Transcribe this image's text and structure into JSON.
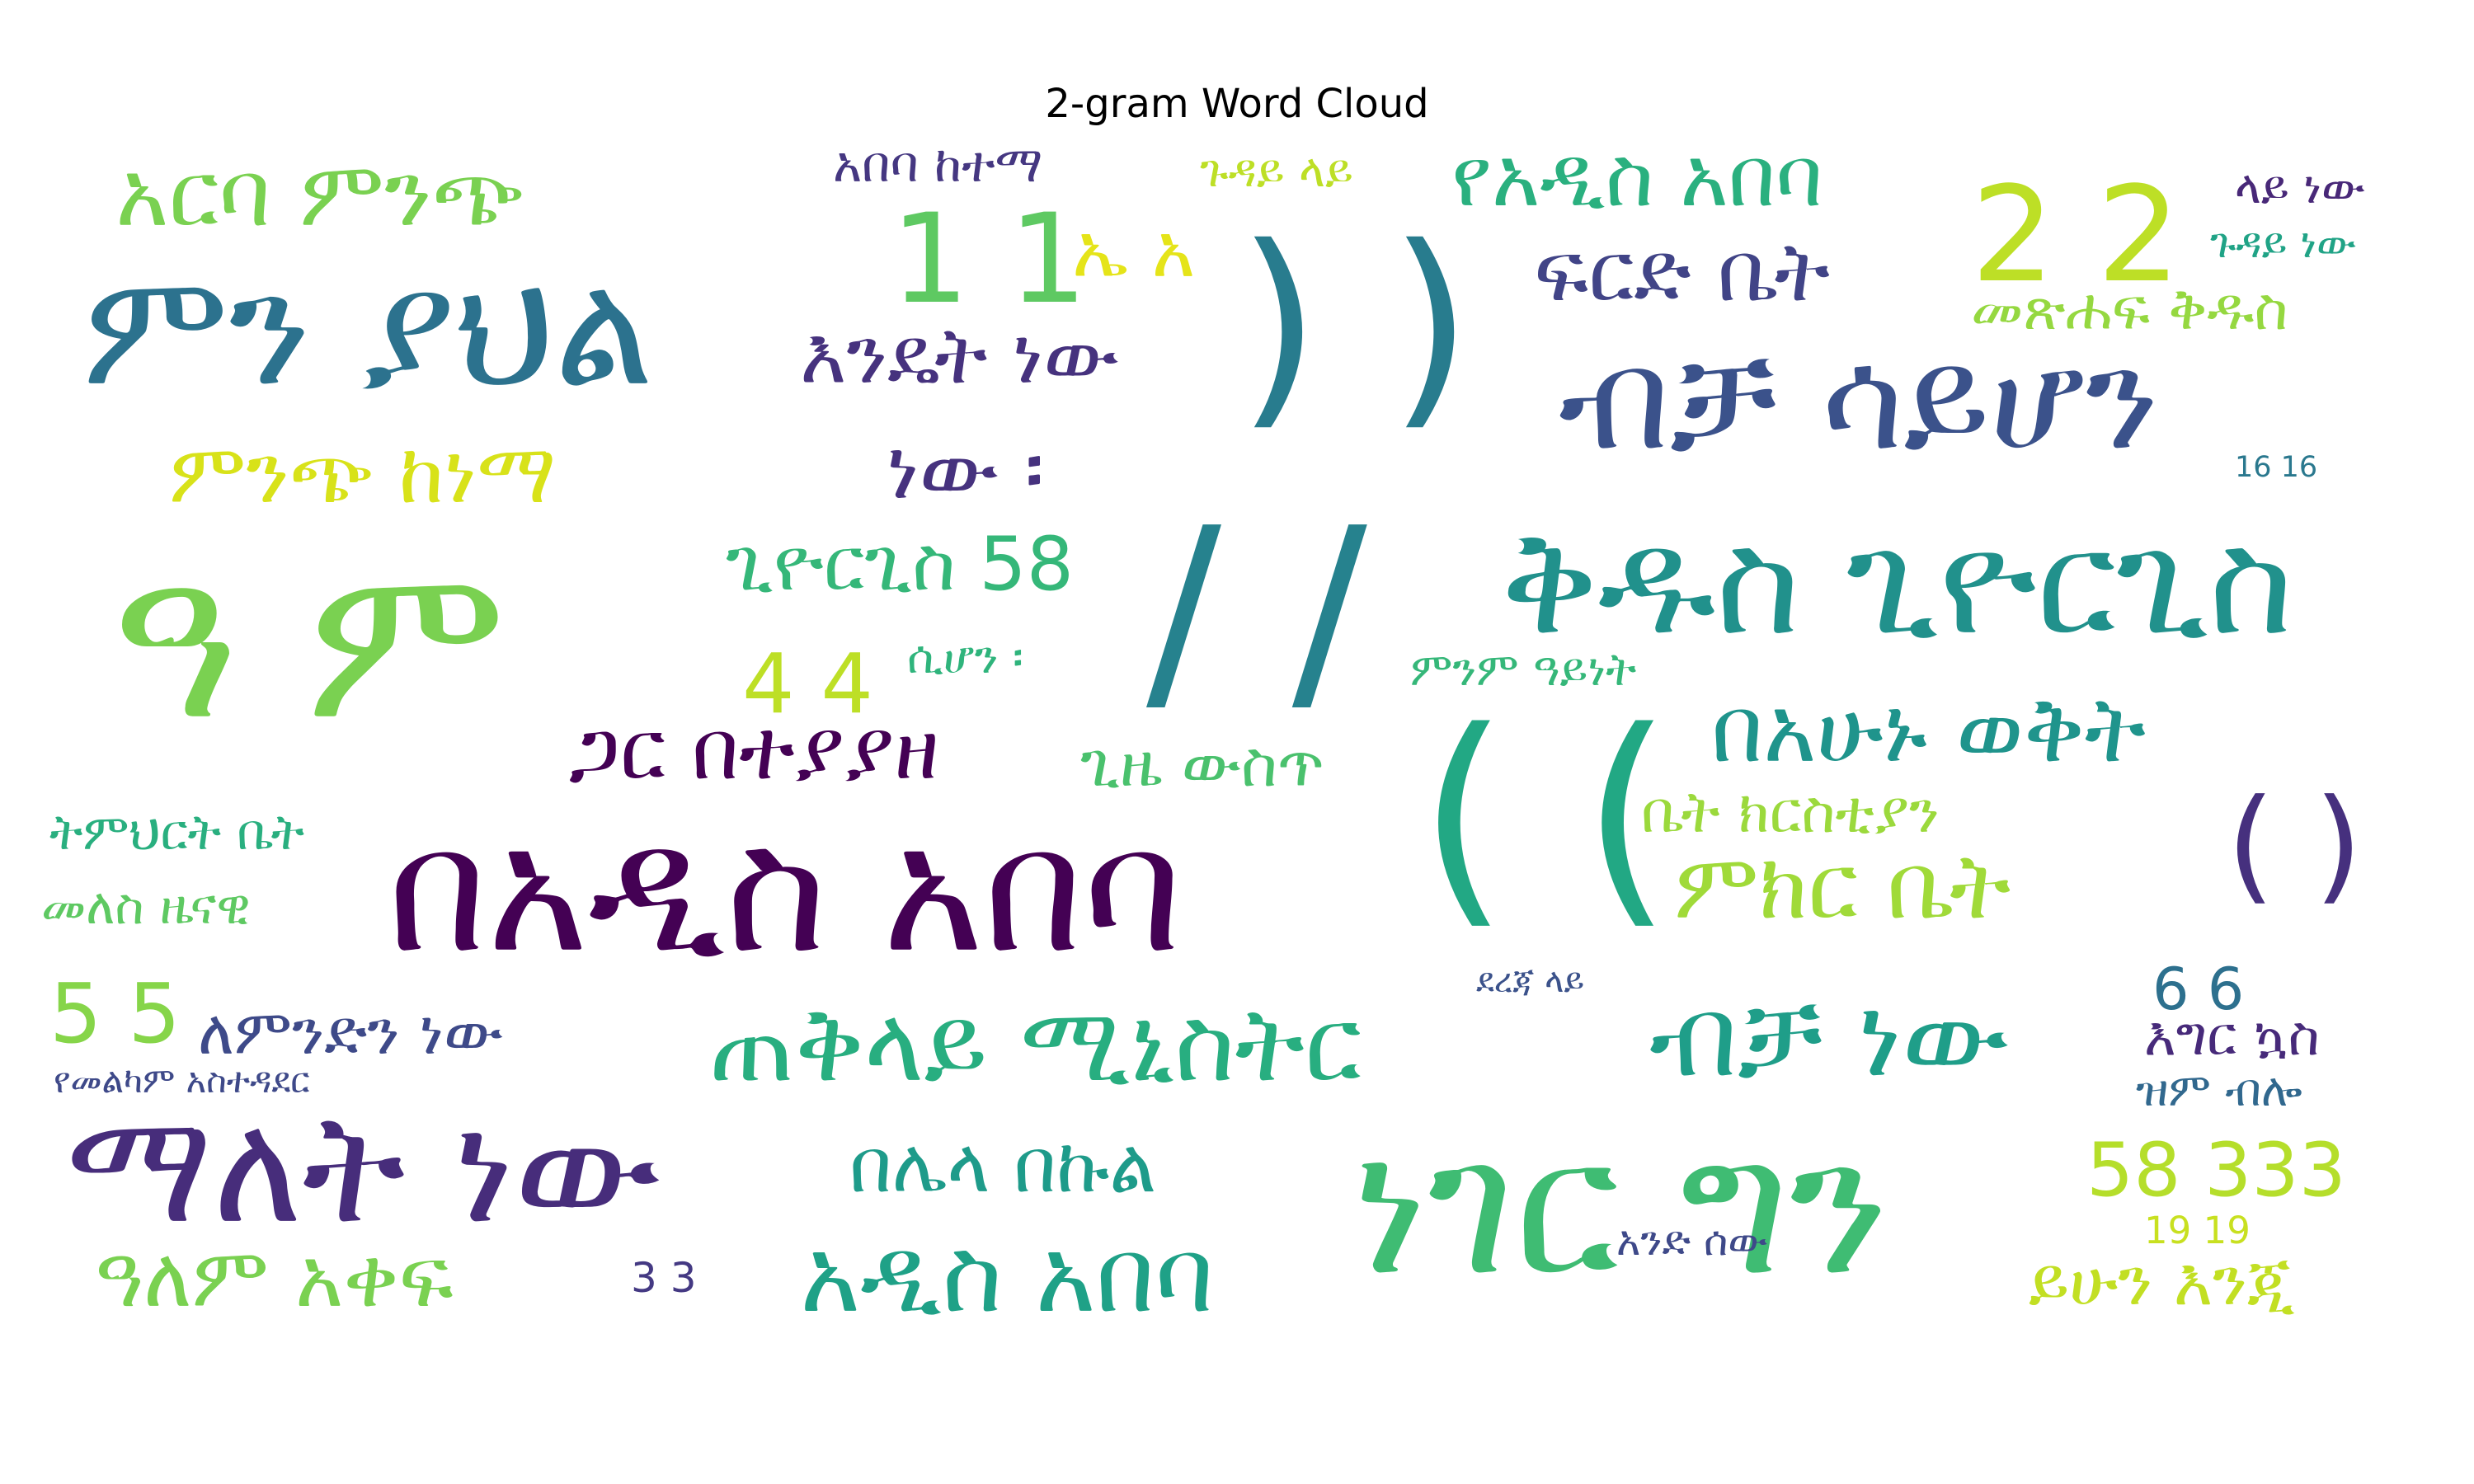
{
  "title": "2-gram Word Cloud",
  "words": [
    {
      "text": "ዓ ም",
      "color": "#7ad151"
    },
    {
      "text": "በአዲስ አበባ",
      "color": "#440154"
    },
    {
      "text": "ነገር ግን",
      "color": "#3fbc73"
    },
    {
      "text": "ምን ያህል",
      "color": "#2c728e"
    },
    {
      "text": "ማለት ነው",
      "color": "#472d7b"
    },
    {
      "text": "ቅዱስ ጊዮርጊስ",
      "color": "#21918c"
    },
    {
      "text": "ብቻ ሳይሆን",
      "color": "#3b528b"
    },
    {
      "text": "ጠቅላይ ሚኒስትር",
      "color": "#28ae80"
    },
    {
      "text": "ብቻ ነው",
      "color": "#1f9e89"
    },
    {
      "text": "/ /",
      "color": "#26828e"
    },
    {
      "text": ") )",
      "color": "#287c8e"
    },
    {
      "text": "( (",
      "color": "#22a884"
    },
    {
      "text": "ጋር በተያያዘ",
      "color": "#440154"
    },
    {
      "text": "አዲስ አበባ",
      "color": "#1fa187"
    },
    {
      "text": "በአሁኑ ወቅት",
      "color": "#1f948c"
    },
    {
      "text": "አርባ ምንጭ",
      "color": "#7ad151"
    },
    {
      "text": "እንዴት ነው",
      "color": "#46327e"
    },
    {
      "text": "ምንጭ ከነማ",
      "color": "#d8e219"
    },
    {
      "text": "የአዲስ አበባ",
      "color": "#2ab07f"
    },
    {
      "text": "2 2",
      "color": "#bddf26"
    },
    {
      "text": "1 1",
      "color": "#5ec962"
    },
    {
      "text": "ምክር ቤት",
      "color": "#a0da39"
    },
    {
      "text": "ፍርድ ቤት",
      "color": "#414487"
    },
    {
      "text": "ዓለም አቀፍ",
      "color": "#7ad151"
    },
    {
      "text": "በሌላ በኩል",
      "color": "#1e9b8a"
    },
    {
      "text": "ጊዮርጊስ 58",
      "color": "#35b779"
    },
    {
      "text": "ለምንድን ነው",
      "color": "#3e4a89"
    },
    {
      "text": "58 333",
      "color": "#b5de2b"
    },
    {
      "text": "ይሁን እንጂ",
      "color": "#c2df23"
    },
    {
      "text": "( )",
      "color": "#46307e"
    },
    {
      "text": "ነው ፡",
      "color": "#46327e"
    },
    {
      "text": "5 5",
      "color": "#86d549"
    },
    {
      "text": "ጊዜ ውስጥ",
      "color": "#4ac16d"
    },
    {
      "text": "መጽሐፍ ቅዱስ",
      "color": "#95d840"
    },
    {
      "text": "ቤት ክርስቲያን",
      "color": "#9bd93c"
    },
    {
      "text": "ኤ አ",
      "color": "#e5e419"
    },
    {
      "text": "4 4",
      "color": "#bddf26"
    },
    {
      "text": "መለስ ዜናዊ",
      "color": "#5ec962"
    },
    {
      "text": "ትምህርት ቤት",
      "color": "#29af7f"
    },
    {
      "text": "እግር ኳስ",
      "color": "#472a7a"
    },
    {
      "text": "6 6",
      "color": "#2d708e"
    },
    {
      "text": "አበባ ከተማ",
      "color": "#453781"
    },
    {
      "text": "ጉዳይ ላይ",
      "color": "#bddf26"
    },
    {
      "text": "ላይ ነው",
      "color": "#482878"
    },
    {
      "text": "ጉዳይ ነው",
      "color": "#20a386"
    },
    {
      "text": "ሲሆን ፡",
      "color": "#2fb47c"
    },
    {
      "text": "ምንም ዓይነት",
      "color": "#35b779"
    },
    {
      "text": "ዝም ብሎ",
      "color": "#31688e"
    },
    {
      "text": "አንድ ሰው",
      "color": "#3e4989"
    },
    {
      "text": "19 19",
      "color": "#c8e020"
    },
    {
      "text": "16 16",
      "color": "#2a788e"
    },
    {
      "text": "ደረጃ ላይ",
      "color": "#3b528b"
    },
    {
      "text": "የመልካም አስተዳደር",
      "color": "#3e4989"
    },
    {
      "text": "3 3",
      "color": "#443983"
    }
  ]
}
